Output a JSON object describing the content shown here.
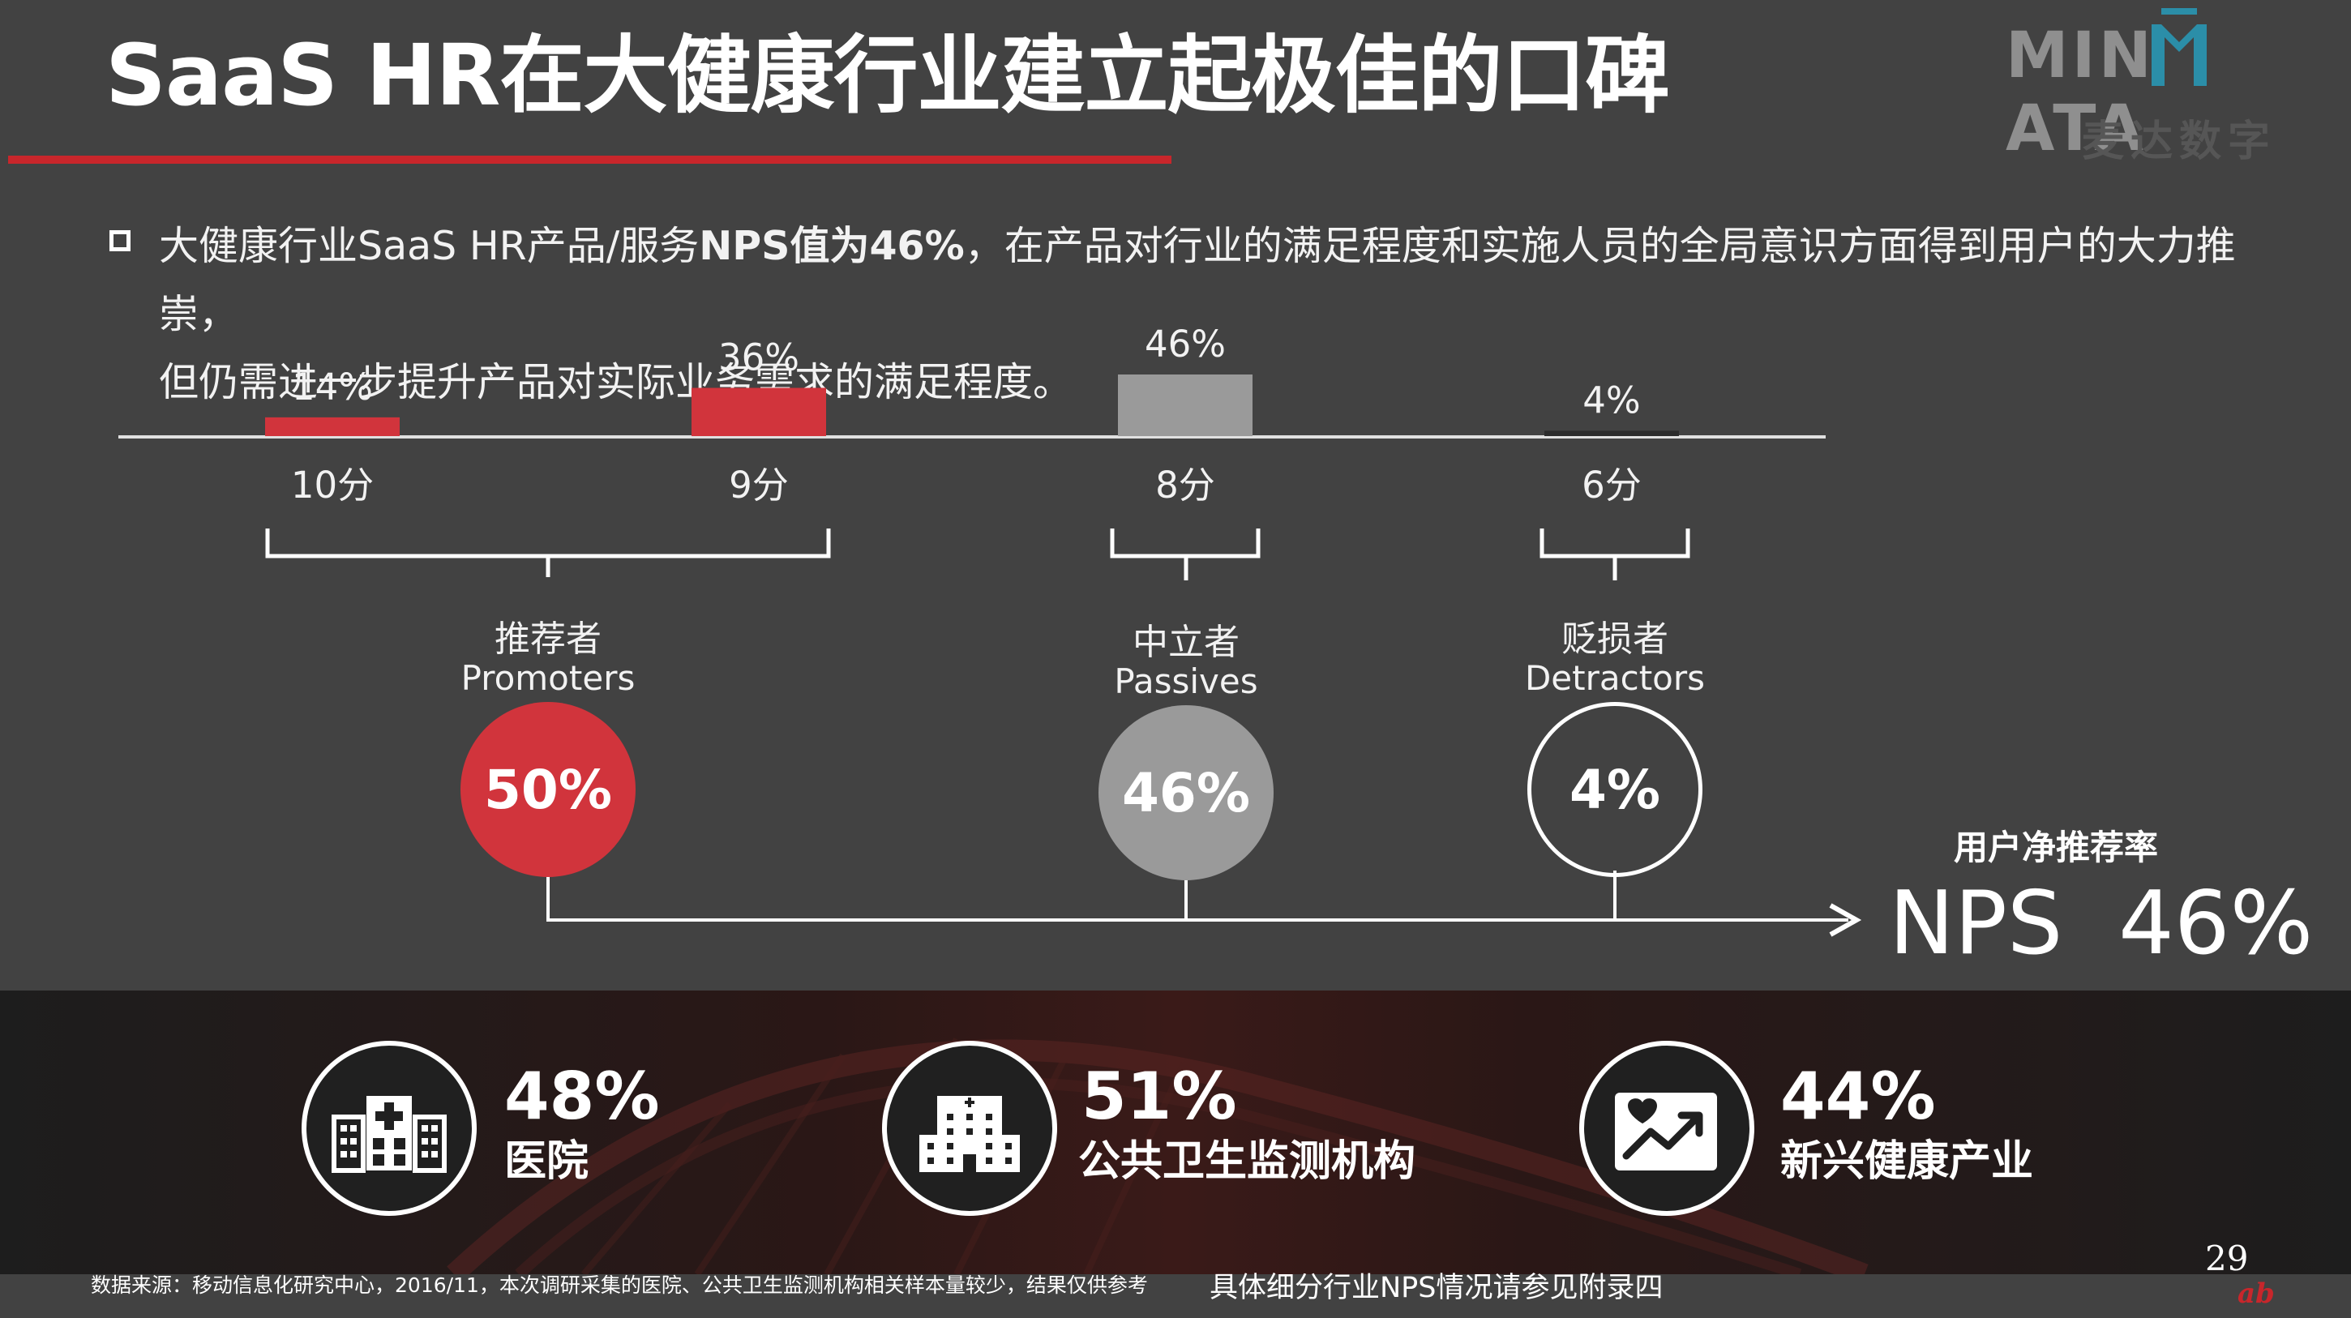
{
  "title": "SaaS HR在大健康行业建立起极佳的口碑",
  "logo": {
    "text_left": "MIN",
    "text_right": "ATA",
    "subtitle": "麦达数字"
  },
  "bullet": {
    "part1": "大健康行业SaaS HR产品/服务",
    "part2_bold": "NPS值为46%",
    "part3": "，在产品对行业的满足程度和实施人员的全局意识方面得到用户的大力推崇，",
    "line2": "但仍需进一步提升产品对实际业务需求的满足程度。"
  },
  "chart_data": {
    "type": "bar",
    "categories": [
      "10分",
      "9分",
      "8分",
      "6分"
    ],
    "values": [
      14,
      36,
      46,
      4
    ],
    "value_labels": [
      "14%",
      "36%",
      "46%",
      "4%"
    ],
    "colors": [
      "#d1343c",
      "#d1343c",
      "#9a9a9a",
      "#2b2b2b"
    ],
    "ylim": [
      0,
      46
    ]
  },
  "groups": [
    {
      "cn": "推荐者",
      "en": "Promoters",
      "value": "50%",
      "fill": "#d1343c",
      "border": "#d1343c"
    },
    {
      "cn": "中立者",
      "en": "Passives",
      "value": "46%",
      "fill": "#9a9a9a",
      "border": "#9a9a9a"
    },
    {
      "cn": "贬损者",
      "en": "Detractors",
      "value": "4%",
      "fill": "transparent",
      "border": "#ffffff"
    }
  ],
  "nps": {
    "caption": "用户净推荐率",
    "label": "NPS",
    "value": "46%"
  },
  "stats": [
    {
      "icon": "hospital-icon",
      "pct": "48%",
      "name": "医院"
    },
    {
      "icon": "public-health-building-icon",
      "pct": "51%",
      "name": "公共卫生监测机构"
    },
    {
      "icon": "heart-trend-chart-icon",
      "pct": "44%",
      "name": "新兴健康产业"
    }
  ],
  "footer": {
    "source": "数据来源：移动信息化研究中心，2016/11，本次调研采集的医院、公共卫生监测机构相关样本量较少，结果仅供参考",
    "appendix": "具体细分行业NPS情况请参见附录四",
    "page_number": "29",
    "corner_logo": "ab"
  }
}
